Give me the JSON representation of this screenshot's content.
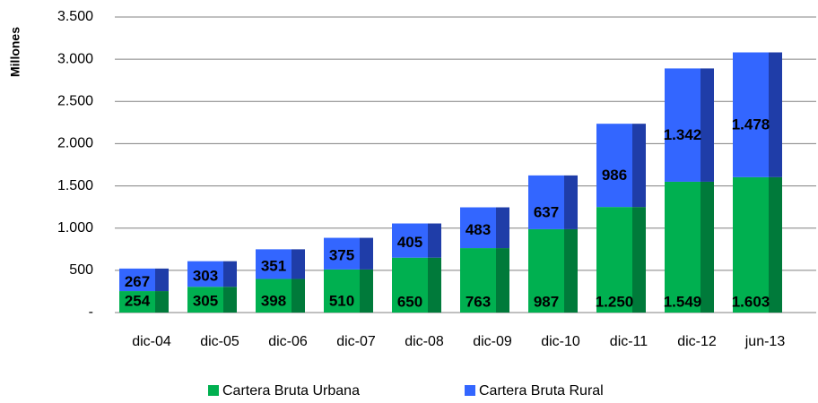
{
  "chart_data": {
    "type": "stacked_bar",
    "y_label": "Millones",
    "categories": [
      "dic-04",
      "dic-05",
      "dic-06",
      "dic-07",
      "dic-08",
      "dic-09",
      "dic-10",
      "dic-11",
      "dic-12",
      "jun-13"
    ],
    "series": [
      {
        "name": "Cartera Bruta Urbana",
        "color": "#00b050",
        "side_color": "#007a3a",
        "values": [
          254,
          305,
          398,
          510,
          650,
          763,
          987,
          1250,
          1549,
          1603
        ],
        "value_labels": [
          "254",
          "305",
          "398",
          "510",
          "650",
          "763",
          "987",
          "1.250",
          "1.549",
          "1.603"
        ]
      },
      {
        "name": "Cartera Bruta Rural",
        "color": "#3366ff",
        "side_color": "#1f3da8",
        "values": [
          267,
          303,
          351,
          375,
          405,
          483,
          637,
          986,
          1342,
          1478
        ],
        "value_labels": [
          "267",
          "303",
          "351",
          "375",
          "405",
          "483",
          "637",
          "986",
          "1.342",
          "1.478"
        ]
      }
    ],
    "ylim": [
      0,
      3500
    ],
    "yticks": [
      {
        "value": 0,
        "label": "-"
      },
      500,
      {
        "value": 1000,
        "label": "1.000"
      },
      {
        "value": 1500,
        "label": "1.500"
      },
      {
        "value": 2000,
        "label": "2.000"
      },
      {
        "value": 2500,
        "label": "2.500"
      },
      {
        "value": 3000,
        "label": "3.000"
      },
      {
        "value": 3500,
        "label": "3.500"
      }
    ],
    "grid": true
  }
}
